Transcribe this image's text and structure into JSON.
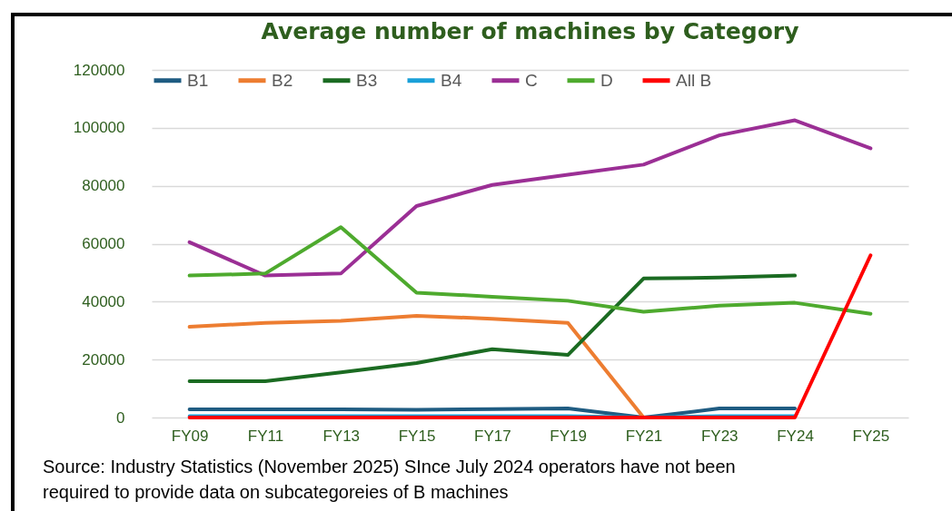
{
  "chart_data": {
    "type": "line",
    "title": "Average number of machines by Category",
    "categories": [
      "FY09",
      "FY11",
      "FY13",
      "FY15",
      "FY17",
      "FY19",
      "FY21",
      "FY23",
      "FY24",
      "FY25"
    ],
    "series": [
      {
        "name": "B1",
        "color": "#1f5c82",
        "values": [
          2800,
          2800,
          2800,
          2700,
          2900,
          3100,
          0,
          3100,
          3100,
          null
        ]
      },
      {
        "name": "B2",
        "color": "#ed7d31",
        "values": [
          31300,
          32700,
          33400,
          35100,
          34100,
          32700,
          0,
          null,
          null,
          null
        ]
      },
      {
        "name": "B3",
        "color": "#1b6b22",
        "values": [
          12500,
          12500,
          15600,
          18800,
          23600,
          21600,
          48000,
          48300,
          49000,
          null
        ]
      },
      {
        "name": "B4",
        "color": "#1aa0d8",
        "values": [
          500,
          500,
          500,
          500,
          500,
          500,
          0,
          500,
          500,
          null
        ]
      },
      {
        "name": "C",
        "color": "#9b2f95",
        "values": [
          60500,
          49000,
          49700,
          73000,
          80300,
          83800,
          87300,
          97400,
          102600,
          92900
        ]
      },
      {
        "name": "D",
        "color": "#4eaa2e",
        "values": [
          49000,
          49700,
          65700,
          43100,
          41700,
          40300,
          36500,
          38600,
          39600,
          35800
        ]
      },
      {
        "name": "All B",
        "color": "#ff0000",
        "values": [
          0,
          0,
          0,
          0,
          0,
          0,
          0,
          0,
          0,
          56000
        ]
      }
    ],
    "ylim": [
      0,
      120000
    ],
    "yticks": [
      0,
      20000,
      40000,
      60000,
      80000,
      100000,
      120000
    ],
    "grid": "y",
    "legend": "top",
    "marker": "none",
    "line_style": "solid",
    "annotations": [
      "Source: Industry Statistics (November 2025) SInce July 2024 operators have not been required to provide data on subcategoreies of B machines"
    ]
  }
}
